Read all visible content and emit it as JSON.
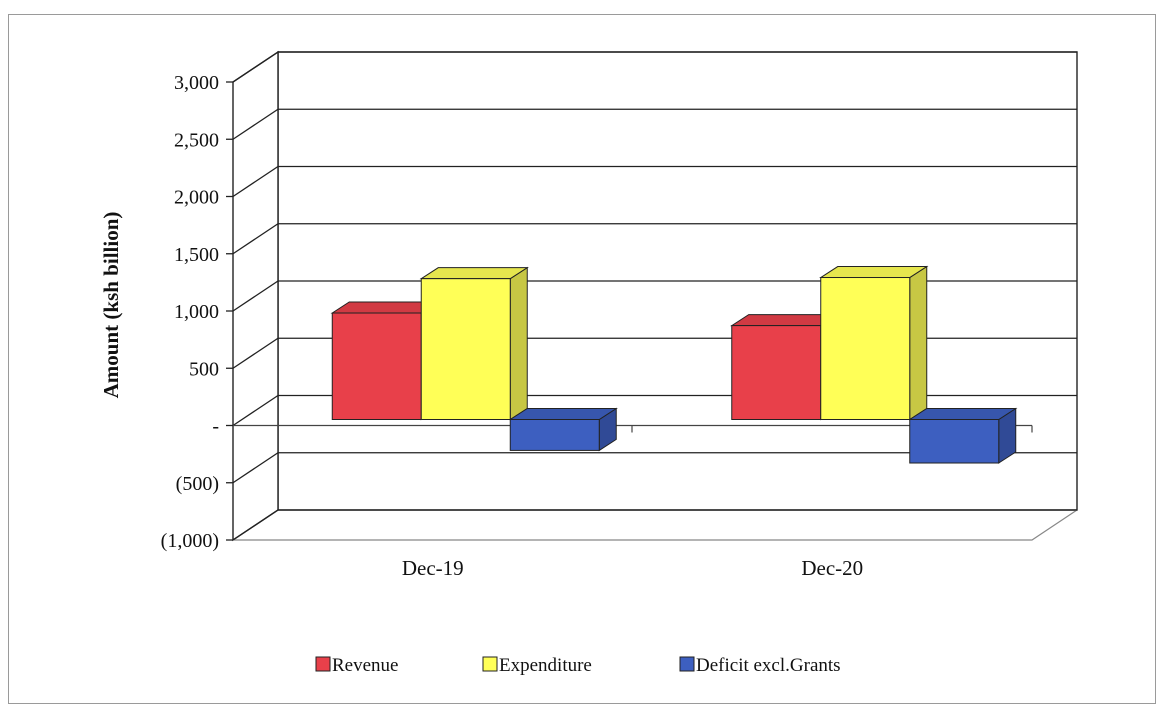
{
  "chart_data": {
    "type": "bar",
    "categories": [
      "Dec-19",
      "Dec-20"
    ],
    "series": [
      {
        "name": "Revenue",
        "values": [
          930,
          820
        ],
        "color": "#e8404a"
      },
      {
        "name": "Expenditure",
        "values": [
          1230,
          1240
        ],
        "color": "#ffff57"
      },
      {
        "name": "Deficit excl.Grants",
        "values": [
          -270,
          -380
        ],
        "color": "#3d5fc0"
      }
    ],
    "ylabel": "Amount (ksh billion)",
    "xlabel": "",
    "title": "",
    "ylim": [
      -1000,
      3000
    ],
    "yticks": [
      {
        "value": 3000,
        "label": "3,000"
      },
      {
        "value": 2500,
        "label": "2,500"
      },
      {
        "value": 2000,
        "label": "2,000"
      },
      {
        "value": 1500,
        "label": "1,500"
      },
      {
        "value": 1000,
        "label": "1,000"
      },
      {
        "value": 500,
        "label": "500"
      },
      {
        "value": 0,
        "label": "-"
      },
      {
        "value": -500,
        "label": "(500)"
      },
      {
        "value": -1000,
        "label": "(1,000)"
      }
    ],
    "grid": true,
    "legend_position": "bottom",
    "style": "3d-clustered-column"
  }
}
